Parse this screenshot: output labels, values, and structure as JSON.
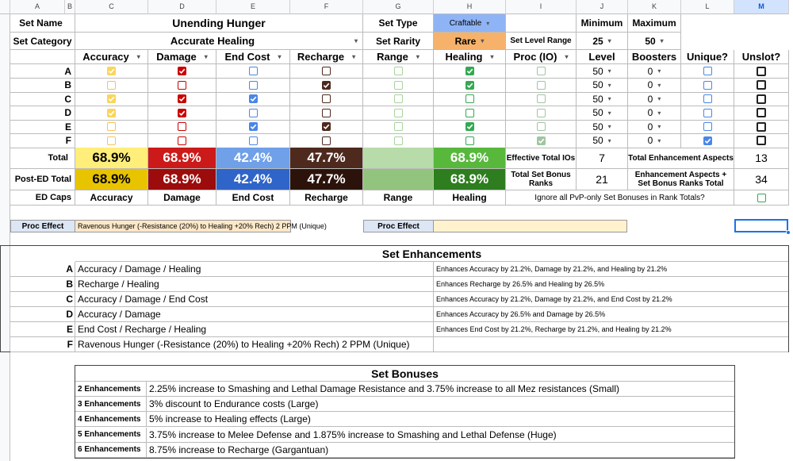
{
  "columns": [
    "A",
    "B",
    "C",
    "D",
    "E",
    "F",
    "G",
    "H",
    "I",
    "J",
    "K",
    "L",
    "M"
  ],
  "header": {
    "set_name_label": "Set Name",
    "set_name": "Unending Hunger",
    "set_type_label": "Set Type",
    "set_type": "Craftable",
    "minimum_label": "Minimum",
    "maximum_label": "Maximum",
    "set_category_label": "Set Category",
    "set_category": "Accurate Healing",
    "set_rarity_label": "Set Rarity",
    "set_rarity": "Rare",
    "set_level_range_label": "Set Level Range",
    "min_level": "25",
    "max_level": "50"
  },
  "grid": {
    "headers": [
      "Accuracy",
      "Damage",
      "End Cost",
      "Recharge",
      "Range",
      "Healing",
      "Proc (IO)",
      "Level",
      "Boosters",
      "Unique?",
      "Unslot?"
    ],
    "rows": [
      {
        "label": "A",
        "level": "50",
        "boosters": "0",
        "checks": [
          1,
          1,
          0,
          0,
          0,
          1,
          0
        ],
        "unique": 0,
        "unslot": 0
      },
      {
        "label": "B",
        "level": "50",
        "boosters": "0",
        "checks": [
          0,
          0,
          0,
          1,
          0,
          1,
          0
        ],
        "unique": 0,
        "unslot": 0
      },
      {
        "label": "C",
        "level": "50",
        "boosters": "0",
        "checks": [
          1,
          1,
          1,
          0,
          0,
          0,
          0
        ],
        "unique": 0,
        "unslot": 0
      },
      {
        "label": "D",
        "level": "50",
        "boosters": "0",
        "checks": [
          1,
          1,
          0,
          0,
          0,
          0,
          0
        ],
        "unique": 0,
        "unslot": 0
      },
      {
        "label": "E",
        "level": "50",
        "boosters": "0",
        "checks": [
          0,
          0,
          1,
          1,
          0,
          1,
          0
        ],
        "unique": 0,
        "unslot": 0
      },
      {
        "label": "F",
        "level": "50",
        "boosters": "0",
        "checks": [
          0,
          0,
          0,
          0,
          0,
          0,
          1
        ],
        "unique": 1,
        "unslot": 0
      }
    ]
  },
  "totals": {
    "total_label": "Total",
    "total": [
      "68.9%",
      "68.9%",
      "42.4%",
      "47.7%",
      "",
      "68.9%"
    ],
    "post_ed_label": "Post-ED Total",
    "post_ed": [
      "68.9%",
      "68.9%",
      "42.4%",
      "47.7%",
      "",
      "68.9%"
    ],
    "ed_caps_label": "ED Caps",
    "ed_caps": [
      "Accuracy",
      "Damage",
      "End Cost",
      "Recharge",
      "Range",
      "Healing"
    ],
    "effective_ios_label": "Effective Total IOs",
    "effective_ios": "7",
    "total_set_bonus_label": "Total Set Bonus Ranks",
    "total_set_bonus": "21",
    "total_enh_aspects_label": "Total Enhancement Aspects",
    "total_enh_aspects": "13",
    "enh_aspects_bonus_label": "Enhancement Aspects + Set Bonus Ranks Total",
    "enh_aspects_bonus": "34",
    "ignore_pvp_label": "Ignore all PvP-only Set Bonuses in Rank Totals?"
  },
  "proc": {
    "label": "Proc Effect",
    "value": "Ravenous Hunger (-Resistance (20%) to Healing +20% Rech) 2 PPM (Unique)",
    "label2": "Proc Effect",
    "value2": ""
  },
  "set_enhancements": {
    "title": "Set Enhancements",
    "items": [
      {
        "letter": "A",
        "name": "Accuracy / Damage / Healing",
        "desc": "Enhances Accuracy by 21.2%, Damage by 21.2%, and Healing by 21.2%"
      },
      {
        "letter": "B",
        "name": "Recharge / Healing",
        "desc": "Enhances Recharge by 26.5% and Healing by 26.5%"
      },
      {
        "letter": "C",
        "name": "Accuracy / Damage / End Cost",
        "desc": "Enhances Accuracy by 21.2%, Damage by 21.2%, and End Cost by 21.2%"
      },
      {
        "letter": "D",
        "name": "Accuracy / Damage",
        "desc": "Enhances Accuracy by 26.5% and Damage by 26.5%"
      },
      {
        "letter": "E",
        "name": "End Cost / Recharge / Healing",
        "desc": "Enhances End Cost by 21.2%, Recharge by 21.2%, and Healing by 21.2%"
      },
      {
        "letter": "F",
        "name": "Ravenous Hunger (-Resistance (20%) to Healing +20% Rech) 2 PPM (Unique)",
        "desc": ""
      }
    ]
  },
  "set_bonuses": {
    "title": "Set Bonuses",
    "items": [
      {
        "label": "2 Enhancements",
        "text": "2.25% increase to Smashing and Lethal Damage Resistance and 3.75% increase to all Mez resistances (Small)"
      },
      {
        "label": "3 Enhancements",
        "text": "3% discount to Endurance costs (Large)"
      },
      {
        "label": "4 Enhancements",
        "text": "5% increase to Healing effects (Large)"
      },
      {
        "label": "5 Enhancements",
        "text": "3.75% increase to Melee Defense and 1.875% increase to Smashing and Lethal Defense (Huge)"
      },
      {
        "label": "6 Enhancements",
        "text": "8.75% increase to Recharge (Gargantuan)"
      }
    ]
  },
  "colors": {
    "accuracy_on": "#fbd55b",
    "accuracy_off": "#f6c35a",
    "damage": "#cc0000",
    "endcost": "#4a86e8",
    "recharge": "#4e2a1e",
    "range": "#a7d49a",
    "healing": "#34a853",
    "proc": "#9fc6a0",
    "total_acc": "#ffee7a",
    "total_dmg": "#cc1a1a",
    "total_end": "#6fa0e8",
    "total_rech": "#4e2a1e",
    "total_range": "#b7dca9",
    "total_heal": "#57b83c",
    "post_acc": "#e8c400",
    "post_dmg": "#9c0c0c",
    "post_end": "#2f64c8",
    "post_rech": "#2b130b",
    "post_range": "#93c47d",
    "post_heal": "#2e7d1f",
    "settype_bg": "#8fb4f5",
    "rarity_bg": "#f6b26b"
  }
}
